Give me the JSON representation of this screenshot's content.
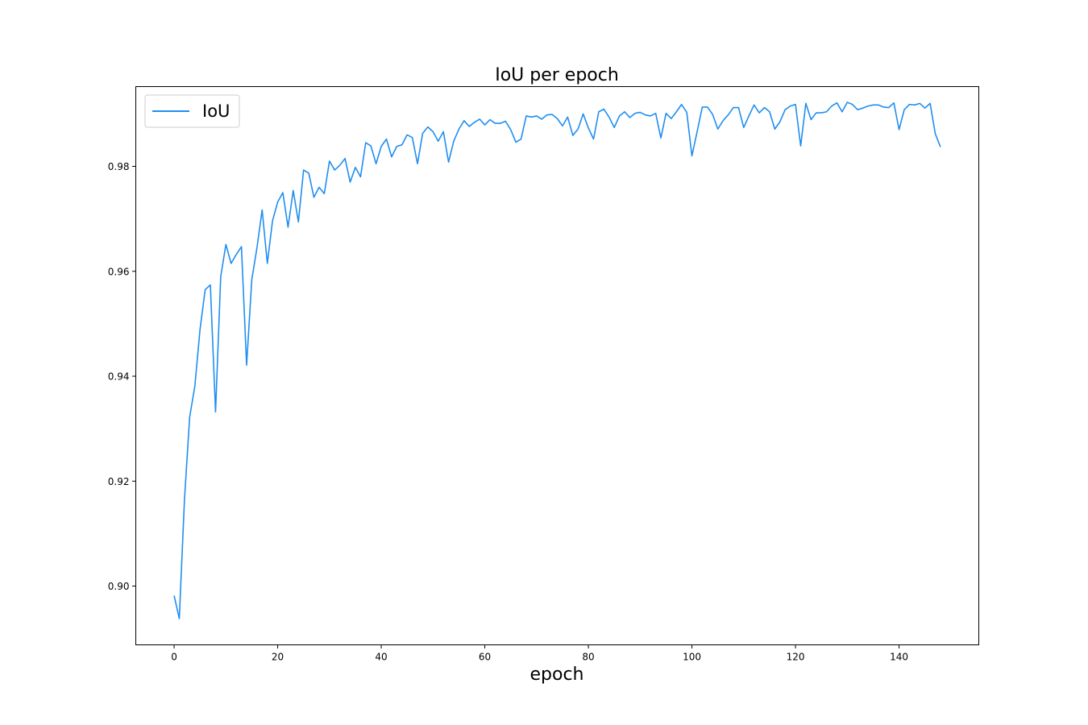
{
  "chart_data": {
    "type": "line",
    "title": "IoU per epoch",
    "xlabel": "epoch",
    "ylabel": "",
    "xlim": [
      -7.4,
      155.4
    ],
    "ylim": [
      0.8888,
      0.9952
    ],
    "xticks": [
      0,
      20,
      40,
      60,
      80,
      100,
      120,
      140
    ],
    "xtick_labels": [
      "0",
      "20",
      "40",
      "60",
      "80",
      "100",
      "120",
      "140"
    ],
    "yticks": [
      0.9,
      0.92,
      0.94,
      0.96,
      0.98
    ],
    "ytick_labels": [
      "0.90",
      "0.92",
      "0.94",
      "0.96",
      "0.98"
    ],
    "legend": {
      "position": "top-left",
      "entries": [
        "IoU"
      ]
    },
    "grid": false,
    "series": [
      {
        "name": "IoU",
        "color": "#1f8ef1",
        "x": [
          0,
          1,
          2,
          3,
          4,
          5,
          6,
          7,
          8,
          9,
          10,
          11,
          12,
          13,
          14,
          15,
          16,
          17,
          18,
          19,
          20,
          21,
          22,
          23,
          24,
          25,
          26,
          27,
          28,
          29,
          30,
          31,
          32,
          33,
          34,
          35,
          36,
          37,
          38,
          39,
          40,
          41,
          42,
          43,
          44,
          45,
          46,
          47,
          48,
          49,
          50,
          51,
          52,
          53,
          54,
          55,
          56,
          57,
          58,
          59,
          60,
          61,
          62,
          63,
          64,
          65,
          66,
          67,
          68,
          69,
          70,
          71,
          72,
          73,
          74,
          75,
          76,
          77,
          78,
          79,
          80,
          81,
          82,
          83,
          84,
          85,
          86,
          87,
          88,
          89,
          90,
          91,
          92,
          93,
          94,
          95,
          96,
          97,
          98,
          99,
          100,
          101,
          102,
          103,
          104,
          105,
          106,
          107,
          108,
          109,
          110,
          111,
          112,
          113,
          114,
          115,
          116,
          117,
          118,
          119,
          120,
          121,
          122,
          123,
          124,
          125,
          126,
          127,
          128,
          129,
          130,
          131,
          132,
          133,
          134,
          135,
          136,
          137,
          138,
          139,
          140,
          141,
          142,
          143,
          144,
          145,
          146,
          147,
          148
        ],
        "values": [
          0.8982,
          0.8938,
          0.9165,
          0.9322,
          0.9381,
          0.9489,
          0.9565,
          0.9574,
          0.9332,
          0.959,
          0.9651,
          0.9615,
          0.9632,
          0.9647,
          0.9421,
          0.9584,
          0.9645,
          0.9717,
          0.9615,
          0.9696,
          0.9732,
          0.975,
          0.9684,
          0.9754,
          0.9694,
          0.9793,
          0.9787,
          0.9741,
          0.976,
          0.9748,
          0.981,
          0.9793,
          0.9802,
          0.9815,
          0.977,
          0.9798,
          0.978,
          0.9845,
          0.9839,
          0.9805,
          0.9838,
          0.9852,
          0.9818,
          0.9838,
          0.9841,
          0.986,
          0.9855,
          0.9805,
          0.9863,
          0.9875,
          0.9866,
          0.9848,
          0.9866,
          0.9808,
          0.9848,
          0.9871,
          0.9887,
          0.9876,
          0.9884,
          0.989,
          0.9879,
          0.9889,
          0.9882,
          0.9882,
          0.9886,
          0.987,
          0.9846,
          0.9852,
          0.9896,
          0.9894,
          0.9896,
          0.989,
          0.9898,
          0.9899,
          0.9891,
          0.9877,
          0.9894,
          0.9859,
          0.9871,
          0.99,
          0.9873,
          0.9852,
          0.9904,
          0.9909,
          0.9894,
          0.9874,
          0.9896,
          0.9904,
          0.9893,
          0.9901,
          0.9903,
          0.9898,
          0.9896,
          0.9901,
          0.9854,
          0.9901,
          0.9891,
          0.9904,
          0.9918,
          0.9903,
          0.982,
          0.9866,
          0.9913,
          0.9913,
          0.9899,
          0.9871,
          0.9887,
          0.9898,
          0.9912,
          0.9912,
          0.9874,
          0.9896,
          0.9917,
          0.9902,
          0.9912,
          0.9904,
          0.9871,
          0.9885,
          0.9908,
          0.9915,
          0.9918,
          0.9839,
          0.992,
          0.9889,
          0.9902,
          0.9902,
          0.9904,
          0.9915,
          0.9921,
          0.9904,
          0.9922,
          0.9918,
          0.9908,
          0.9911,
          0.9915,
          0.9917,
          0.9917,
          0.9913,
          0.9912,
          0.9921,
          0.987,
          0.9908,
          0.9918,
          0.9917,
          0.992,
          0.9911,
          0.992,
          0.9862,
          0.9837
        ]
      }
    ]
  }
}
